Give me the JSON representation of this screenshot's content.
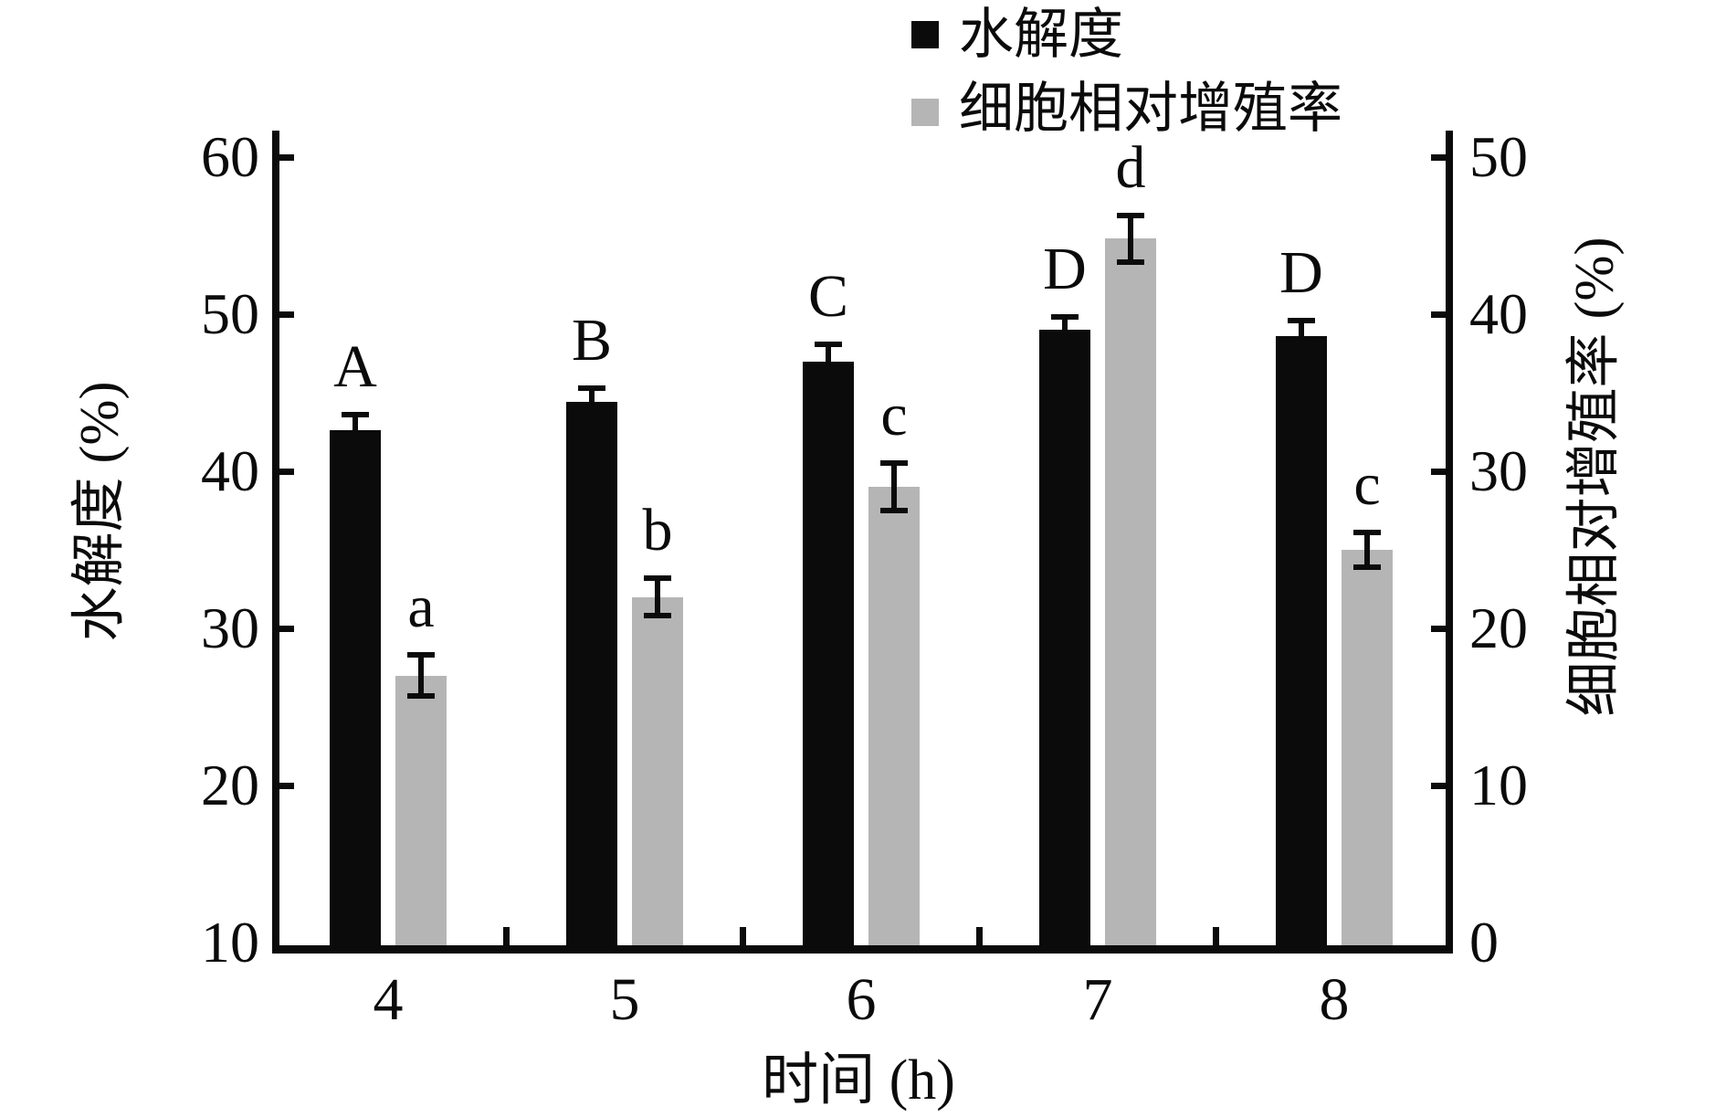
{
  "figure": {
    "background": "#ffffff",
    "colors": {
      "black_bar": "#0b0b0b",
      "gray_bar": "#b5b5b5",
      "axis": "#0b0b0b",
      "text": "#0b0b0b"
    }
  },
  "legend": {
    "items": [
      {
        "label": "水解度",
        "swatch": "black-square",
        "color": "#0b0b0b"
      },
      {
        "label": "细胞相对增殖率",
        "swatch": "gray-square",
        "color": "#b5b5b5"
      }
    ]
  },
  "axes": {
    "x": {
      "label": "时间 (h)",
      "tick_labels": [
        "4",
        "5",
        "6",
        "7",
        "8"
      ]
    },
    "y_left": {
      "label": "水解度 (%)",
      "tick_labels": [
        "10",
        "20",
        "30",
        "40",
        "50",
        "60"
      ],
      "min": 10,
      "max": 60
    },
    "y_right": {
      "label": "细胞相对增殖率 (%)",
      "tick_labels": [
        "0",
        "10",
        "20",
        "30",
        "40",
        "50"
      ],
      "min": 0,
      "max": 50
    }
  },
  "chart_data": {
    "type": "bar",
    "categories": [
      "4",
      "5",
      "6",
      "7",
      "8"
    ],
    "xlabel": "时间 (h)",
    "ylabel_left": "水解度 (%)",
    "ylabel_right": "细胞相对增殖率 (%)",
    "ylim_left": [
      10,
      60
    ],
    "ylim_right": [
      0,
      50
    ],
    "grid": false,
    "legend_position": "top-center",
    "series": [
      {
        "name": "水解度",
        "axis": "left",
        "color": "#0b0b0b",
        "values": [
          42.6,
          44.4,
          47.0,
          49.0,
          48.6
        ],
        "errors": [
          1.0,
          0.9,
          1.1,
          0.8,
          1.0
        ],
        "significance_labels": [
          "A",
          "B",
          "C",
          "D",
          "D"
        ]
      },
      {
        "name": "细胞相对增殖率",
        "axis": "right",
        "color": "#b5b5b5",
        "values": [
          17.0,
          22.0,
          29.0,
          44.8,
          25.0
        ],
        "errors": [
          1.3,
          1.2,
          1.5,
          1.5,
          1.1
        ],
        "significance_labels": [
          "a",
          "b",
          "c",
          "d",
          "c"
        ]
      }
    ]
  }
}
